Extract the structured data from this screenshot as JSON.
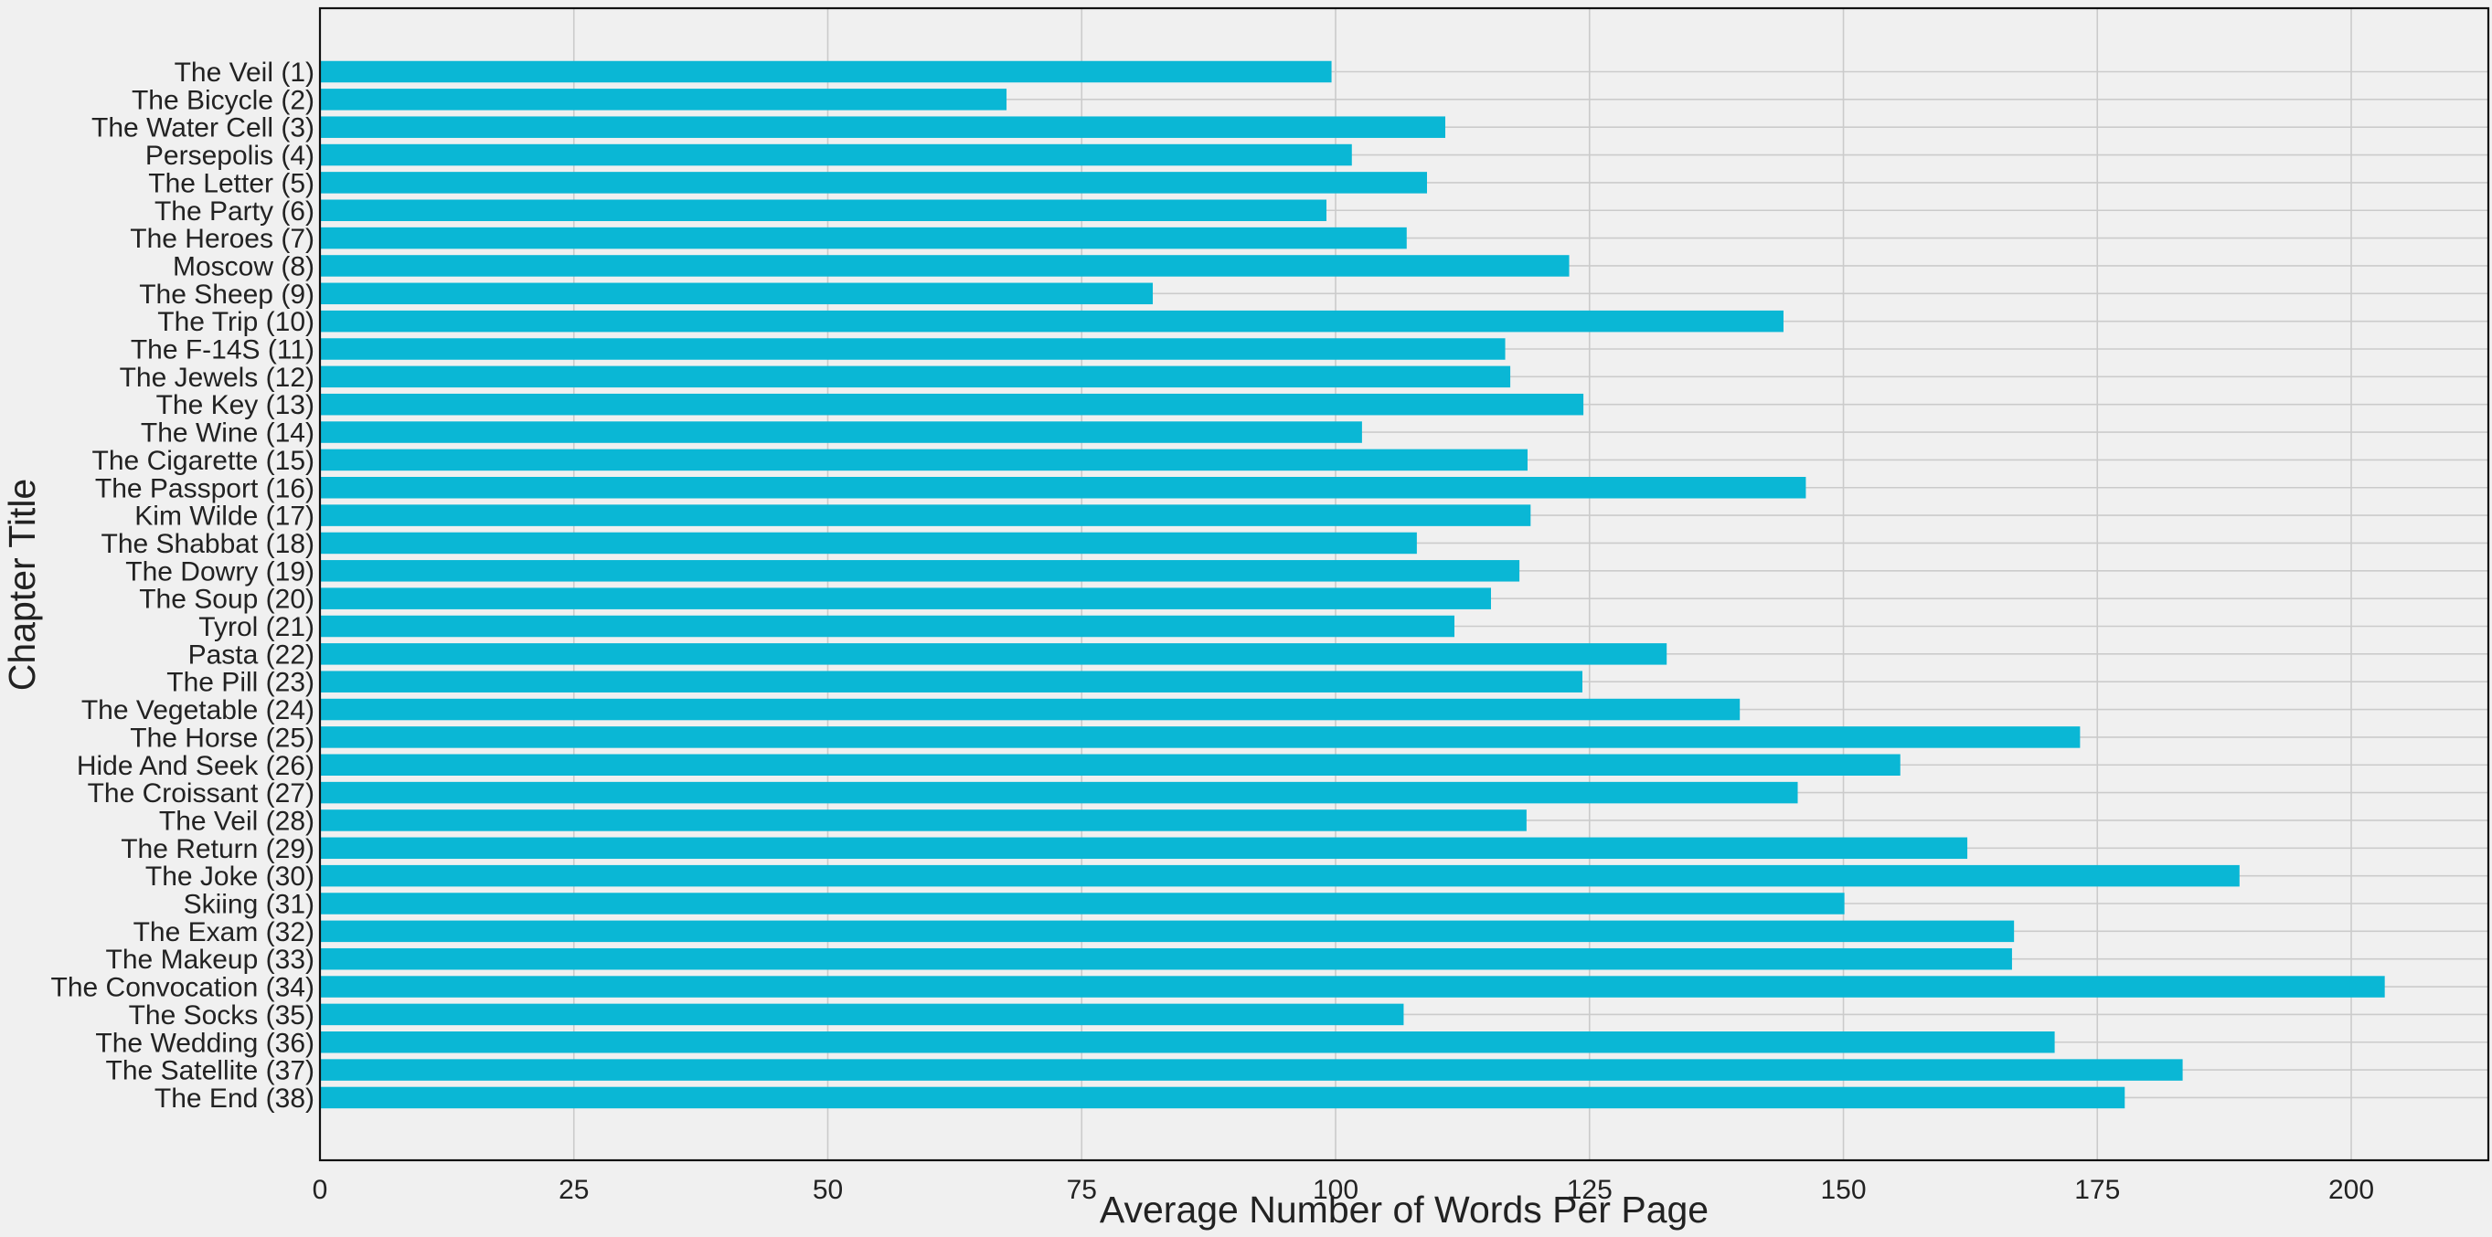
{
  "chart_data": {
    "type": "bar",
    "orientation": "horizontal",
    "xlabel": "Average Number of Words Per Page",
    "ylabel": "Chapter Title",
    "xlim": [
      0,
      213.5
    ],
    "x_ticks": [
      0,
      25,
      50,
      75,
      100,
      125,
      150,
      175,
      200
    ],
    "grid": true,
    "bar_color": "#0ab7d5",
    "background": "#f0f0f0",
    "categories": [
      "The Veil (1)",
      "The Bicycle (2)",
      "The Water Cell (3)",
      "Persepolis (4)",
      "The Letter (5)",
      "The Party (6)",
      "The Heroes (7)",
      "Moscow (8)",
      "The Sheep (9)",
      "The Trip (10)",
      "The F-14S (11)",
      "The Jewels (12)",
      "The Key (13)",
      "The Wine (14)",
      "The Cigarette (15)",
      "The Passport (16)",
      "Kim Wilde (17)",
      "The Shabbat (18)",
      "The Dowry (19)",
      "The Soup (20)",
      "Tyrol (21)",
      "Pasta (22)",
      "The Pill (23)",
      "The Vegetable (24)",
      "The Horse (25)",
      "Hide And Seek (26)",
      "The Croissant (27)",
      "The Veil (28)",
      "The Return (29)",
      "The Joke (30)",
      "Skiing (31)",
      "The Exam (32)",
      "The Makeup (33)",
      "The Convocation (34)",
      "The Socks (35)",
      "The Wedding (36)",
      "The Satellite (37)",
      "The End (38)"
    ],
    "values": [
      99.6,
      67.6,
      110.8,
      101.6,
      109.0,
      99.1,
      107.0,
      123.0,
      82.0,
      144.1,
      116.7,
      117.2,
      124.4,
      102.6,
      118.9,
      146.3,
      119.2,
      108.0,
      118.1,
      115.3,
      111.7,
      132.6,
      124.3,
      139.8,
      173.3,
      155.6,
      145.5,
      118.8,
      162.2,
      189.0,
      150.1,
      166.8,
      166.6,
      203.3,
      106.7,
      170.8,
      183.4,
      177.7
    ]
  }
}
